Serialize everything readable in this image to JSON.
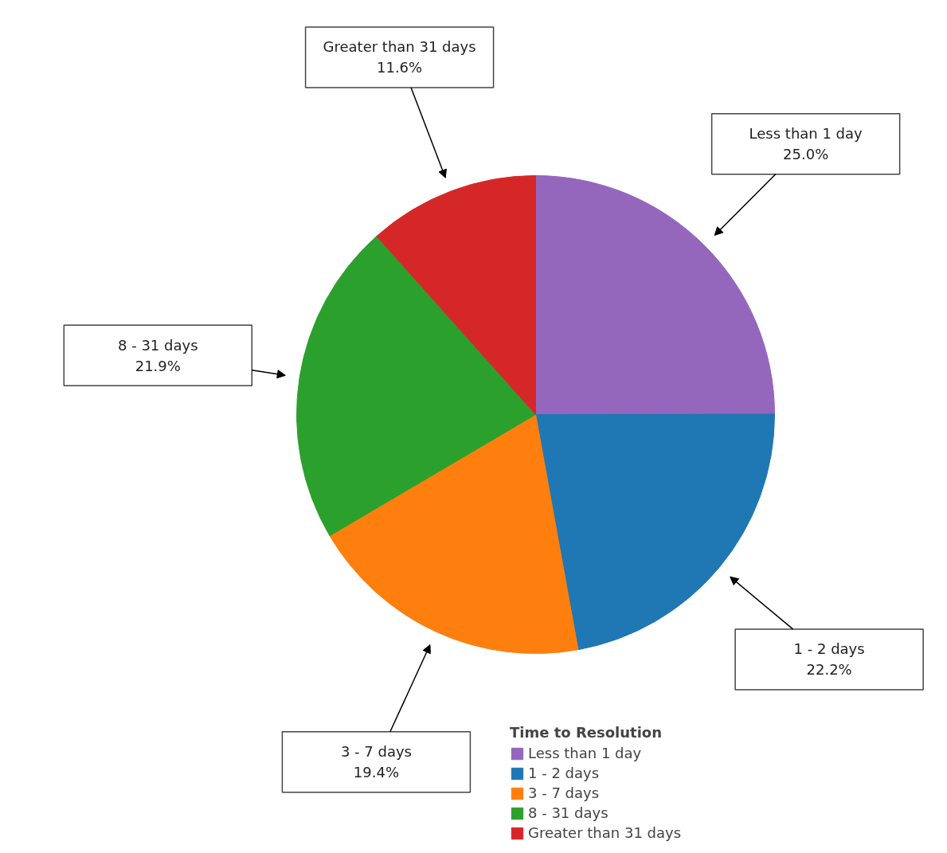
{
  "chart_data": {
    "type": "pie",
    "legend_title": "Time to Resolution",
    "legend": "bottom",
    "categories": [
      "Less than 1 day",
      "1 - 2 days",
      "3 - 7 days",
      "8 - 31 days",
      "Greater than 31 days"
    ],
    "values": [
      25.0,
      22.2,
      19.4,
      21.9,
      11.6
    ],
    "colors": [
      "#9467bd",
      "#1f77b4",
      "#ff7f0e",
      "#2ca02c",
      "#d62728"
    ],
    "value_labels": [
      "25.0%",
      "22.2%",
      "19.4%",
      "21.9%",
      "11.6%"
    ]
  }
}
